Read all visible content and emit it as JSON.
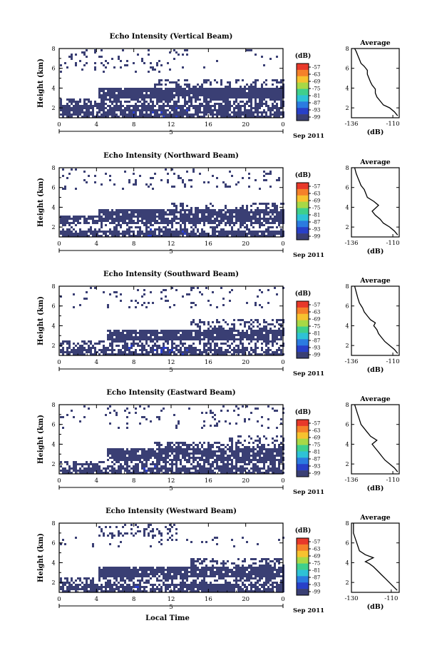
{
  "chart_data": [
    {
      "type": "heatmap",
      "title": "Echo Intensity (Vertical Beam)",
      "ylabel": "Height (km)",
      "xticks": [
        "0",
        "4",
        "8",
        "12",
        "16",
        "20",
        "0"
      ],
      "yticks": [
        "2",
        "4",
        "6",
        "8"
      ],
      "xlim": [
        0,
        24
      ],
      "ylim": [
        1,
        8
      ],
      "day_label": "5",
      "date_label": "Sep 2011",
      "colorbar": {
        "unit": "(dB)",
        "labels": [
          "-57",
          "-63",
          "-69",
          "-75",
          "-81",
          "-87",
          "-93",
          "-99"
        ]
      },
      "layers": [
        {
          "x0": 0,
          "x1": 24,
          "y0": 1.1,
          "y1": 2.3,
          "fill": 0.82
        },
        {
          "x0": 0,
          "x1": 24,
          "y0": 2.3,
          "y1": 3.0,
          "fill": 0.6
        },
        {
          "x0": 4,
          "x1": 24,
          "y0": 3.0,
          "y1": 4.2,
          "fill": 0.93
        },
        {
          "x0": 10,
          "x1": 24,
          "y0": 4.2,
          "y1": 4.9,
          "fill": 0.35
        },
        {
          "x0": 0,
          "x1": 12,
          "y0": 5.6,
          "y1": 8.0,
          "fill": 0.1
        },
        {
          "x0": 12,
          "x1": 24,
          "y0": 6.0,
          "y1": 8.0,
          "fill": 0.04
        }
      ],
      "profile": {
        "title": "Average",
        "xlabel": "(dB)",
        "xticks": [
          "-136",
          "-110"
        ],
        "yticks": [
          "2",
          "4",
          "6",
          "8"
        ],
        "xlim": [
          -136,
          -106
        ],
        "ylim": [
          1,
          8
        ],
        "x": [
          -107,
          -109,
          -112,
          -116,
          -118,
          -120,
          -121,
          -121,
          -123,
          -124,
          -125,
          -126,
          -126,
          -128,
          -130,
          -131,
          -132,
          -133,
          -134
        ],
        "y": [
          1.2,
          1.6,
          2.0,
          2.3,
          2.7,
          3.1,
          3.5,
          3.9,
          4.3,
          4.6,
          5.0,
          5.4,
          5.8,
          6.2,
          6.5,
          6.9,
          7.3,
          7.7,
          8.0
        ]
      }
    },
    {
      "type": "heatmap",
      "title": "Echo Intensity (Northward Beam)",
      "ylabel": "Height (km)",
      "xticks": [
        "0",
        "4",
        "8",
        "12",
        "16",
        "20",
        "0"
      ],
      "yticks": [
        "2",
        "4",
        "6",
        "8"
      ],
      "xlim": [
        0,
        24
      ],
      "ylim": [
        1,
        8
      ],
      "day_label": "5",
      "date_label": "Sep 2011",
      "colorbar": {
        "unit": "(dB)",
        "labels": [
          "-57",
          "-63",
          "-69",
          "-75",
          "-81",
          "-87",
          "-93",
          "-99"
        ]
      },
      "layers": [
        {
          "x0": 0,
          "x1": 24,
          "y0": 1.1,
          "y1": 1.8,
          "fill": 0.85
        },
        {
          "x0": 0,
          "x1": 24,
          "y0": 1.8,
          "y1": 2.5,
          "fill": 0.3
        },
        {
          "x0": 0,
          "x1": 24,
          "y0": 2.5,
          "y1": 3.2,
          "fill": 0.85
        },
        {
          "x0": 4,
          "x1": 24,
          "y0": 3.2,
          "y1": 4.0,
          "fill": 0.88
        },
        {
          "x0": 12,
          "x1": 24,
          "y0": 4.0,
          "y1": 4.6,
          "fill": 0.3
        },
        {
          "x0": 0,
          "x1": 24,
          "y0": 5.8,
          "y1": 8.0,
          "fill": 0.1
        }
      ],
      "profile": {
        "title": "Average",
        "xlabel": "(dB)",
        "xticks": [
          "-136",
          "-110"
        ],
        "yticks": [
          "2",
          "4",
          "6",
          "8"
        ],
        "xlim": [
          -136,
          -106
        ],
        "ylim": [
          1,
          8
        ],
        "x": [
          -107,
          -109,
          -112,
          -116,
          -118,
          -121,
          -123,
          -119,
          -122,
          -126,
          -127,
          -128,
          -130,
          -131,
          -132,
          -133,
          -134
        ],
        "y": [
          1.2,
          1.6,
          2.0,
          2.4,
          2.8,
          3.2,
          3.6,
          4.2,
          4.6,
          5.0,
          5.4,
          5.8,
          6.2,
          6.6,
          7.0,
          7.4,
          8.0
        ]
      }
    },
    {
      "type": "heatmap",
      "title": "Echo Intensity (Southward Beam)",
      "ylabel": "Height (km)",
      "xticks": [
        "0",
        "4",
        "8",
        "12",
        "16",
        "20",
        "0"
      ],
      "yticks": [
        "2",
        "4",
        "6",
        "8"
      ],
      "xlim": [
        0,
        24
      ],
      "ylim": [
        1,
        8
      ],
      "day_label": "5",
      "date_label": "Sep 2011",
      "colorbar": {
        "unit": "(dB)",
        "labels": [
          "-57",
          "-63",
          "-69",
          "-75",
          "-81",
          "-87",
          "-93",
          "-99"
        ]
      },
      "layers": [
        {
          "x0": 0,
          "x1": 24,
          "y0": 1.1,
          "y1": 1.8,
          "fill": 0.8
        },
        {
          "x0": 0,
          "x1": 24,
          "y0": 1.8,
          "y1": 2.6,
          "fill": 0.5
        },
        {
          "x0": 5,
          "x1": 24,
          "y0": 2.6,
          "y1": 3.8,
          "fill": 0.9
        },
        {
          "x0": 14,
          "x1": 24,
          "y0": 3.8,
          "y1": 4.8,
          "fill": 0.4
        },
        {
          "x0": 0,
          "x1": 24,
          "y0": 5.8,
          "y1": 8.0,
          "fill": 0.08
        }
      ],
      "profile": {
        "title": "Average",
        "xlabel": "(dB)",
        "xticks": [
          "-136",
          "-110"
        ],
        "yticks": [
          "2",
          "4",
          "6",
          "8"
        ],
        "xlim": [
          -136,
          -106
        ],
        "ylim": [
          1,
          8
        ],
        "x": [
          -107,
          -109,
          -112,
          -115,
          -117,
          -119,
          -120,
          -122,
          -121,
          -124,
          -126,
          -128,
          -129,
          -131,
          -132,
          -133,
          -134
        ],
        "y": [
          1.2,
          1.6,
          2.0,
          2.4,
          2.8,
          3.2,
          3.6,
          4.0,
          4.3,
          4.6,
          5.0,
          5.4,
          5.8,
          6.3,
          6.8,
          7.4,
          8.0
        ]
      }
    },
    {
      "type": "heatmap",
      "title": "Echo Intensity (Eastward Beam)",
      "ylabel": "Height (km)",
      "xticks": [
        "0",
        "4",
        "8",
        "12",
        "16",
        "20",
        "0"
      ],
      "yticks": [
        "2",
        "4",
        "6",
        "8"
      ],
      "xlim": [
        0,
        24
      ],
      "ylim": [
        1,
        8
      ],
      "day_label": "5",
      "date_label": "Sep 2011",
      "colorbar": {
        "unit": "(dB)",
        "labels": [
          "-57",
          "-63",
          "-69",
          "-75",
          "-81",
          "-87",
          "-93",
          "-99"
        ]
      },
      "layers": [
        {
          "x0": 0,
          "x1": 24,
          "y0": 1.1,
          "y1": 1.8,
          "fill": 0.85
        },
        {
          "x0": 0,
          "x1": 24,
          "y0": 1.8,
          "y1": 2.5,
          "fill": 0.55
        },
        {
          "x0": 5,
          "x1": 24,
          "y0": 2.5,
          "y1": 3.6,
          "fill": 0.88
        },
        {
          "x0": 10,
          "x1": 24,
          "y0": 3.6,
          "y1": 4.4,
          "fill": 0.45
        },
        {
          "x0": 18,
          "x1": 24,
          "y0": 4.4,
          "y1": 5.0,
          "fill": 0.35
        },
        {
          "x0": 0,
          "x1": 24,
          "y0": 5.6,
          "y1": 8.0,
          "fill": 0.1
        }
      ],
      "profile": {
        "title": "Average",
        "xlabel": "(dB)",
        "xticks": [
          "-136",
          "-110"
        ],
        "yticks": [
          "2",
          "4",
          "6",
          "8"
        ],
        "xlim": [
          -136,
          -106
        ],
        "ylim": [
          1,
          8
        ],
        "x": [
          -107,
          -109,
          -112,
          -115,
          -117,
          -119,
          -121,
          -123,
          -120,
          -124,
          -126,
          -128,
          -130,
          -131,
          -132,
          -133,
          -134
        ],
        "y": [
          1.2,
          1.6,
          2.0,
          2.4,
          2.8,
          3.2,
          3.6,
          4.0,
          4.4,
          4.8,
          5.2,
          5.6,
          6.0,
          6.5,
          7.0,
          7.5,
          8.0
        ]
      }
    },
    {
      "type": "heatmap",
      "title": "Echo Intensity (Westward Beam)",
      "ylabel": "Height (km)",
      "xlabel": "Local Time",
      "xticks": [
        "0",
        "4",
        "8",
        "12",
        "16",
        "20",
        "0"
      ],
      "yticks": [
        "2",
        "4",
        "6",
        "8"
      ],
      "xlim": [
        0,
        24
      ],
      "ylim": [
        1,
        8
      ],
      "day_label": "5",
      "date_label": "Sep 2011",
      "colorbar": {
        "unit": "(dB)",
        "labels": [
          "-57",
          "-63",
          "-69",
          "-75",
          "-81",
          "-87",
          "-93",
          "-99"
        ]
      },
      "layers": [
        {
          "x0": 0,
          "x1": 24,
          "y0": 1.1,
          "y1": 2.0,
          "fill": 0.85
        },
        {
          "x0": 0,
          "x1": 24,
          "y0": 2.0,
          "y1": 2.7,
          "fill": 0.5
        },
        {
          "x0": 4,
          "x1": 24,
          "y0": 2.7,
          "y1": 3.7,
          "fill": 0.9
        },
        {
          "x0": 14,
          "x1": 24,
          "y0": 3.7,
          "y1": 4.6,
          "fill": 0.45
        },
        {
          "x0": 4,
          "x1": 13,
          "y0": 6.8,
          "y1": 8.0,
          "fill": 0.3
        },
        {
          "x0": 0,
          "x1": 24,
          "y0": 5.6,
          "y1": 6.8,
          "fill": 0.06
        }
      ],
      "profile": {
        "title": "Average",
        "xlabel": "(dB)",
        "xticks": [
          "-130",
          "-110"
        ],
        "yticks": [
          "2",
          "4",
          "6",
          "8"
        ],
        "xlim": [
          -130,
          -106
        ],
        "ylim": [
          1,
          8
        ],
        "x": [
          -107,
          -109,
          -111,
          -113,
          -115,
          -117,
          -119,
          -121,
          -123,
          -119,
          -123,
          -126,
          -127,
          -128,
          -129,
          -129
        ],
        "y": [
          1.2,
          1.6,
          2.0,
          2.4,
          2.8,
          3.2,
          3.6,
          3.9,
          4.1,
          4.5,
          4.8,
          5.2,
          5.8,
          6.4,
          7.0,
          8.0
        ]
      }
    }
  ]
}
